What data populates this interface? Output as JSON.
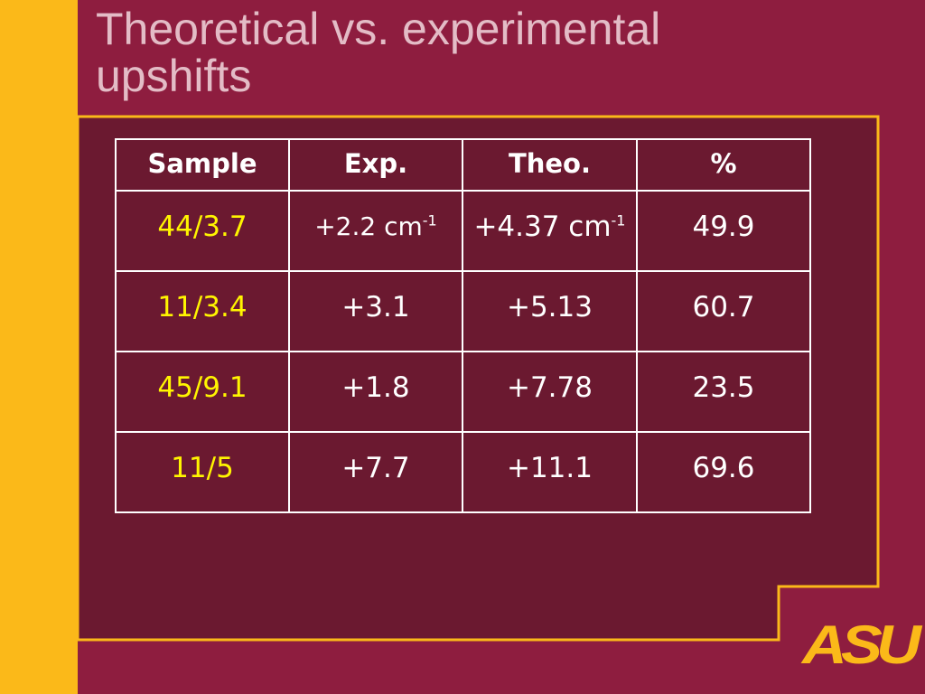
{
  "slide": {
    "title_line1": "Theoretical vs. experimental",
    "title_line2": "upshifts"
  },
  "table": {
    "headers": [
      "Sample",
      "Exp.",
      "Theo.",
      "%"
    ],
    "rows": [
      {
        "sample": "44/3.7",
        "exp": "+2.2 cm",
        "exp_sup": "-1",
        "theo": "+4.37 cm",
        "theo_sup": "-1",
        "pct": "49.9"
      },
      {
        "sample": "11/3.4",
        "exp": "+3.1",
        "exp_sup": "",
        "theo": "+5.13",
        "theo_sup": "",
        "pct": "60.7"
      },
      {
        "sample": "45/9.1",
        "exp": "+1.8",
        "exp_sup": "",
        "theo": "+7.78",
        "theo_sup": "",
        "pct": "23.5"
      },
      {
        "sample": "11/5",
        "exp": "+7.7",
        "exp_sup": "",
        "theo": "+11.1",
        "theo_sup": "",
        "pct": "69.6"
      }
    ]
  },
  "logo": {
    "text": "ASU"
  },
  "colors": {
    "background": "#8e1d3f",
    "content_panel": "#6b1930",
    "gold": "#fbb919",
    "sample_text": "#fff500",
    "title_text": "#e3bcc6"
  }
}
